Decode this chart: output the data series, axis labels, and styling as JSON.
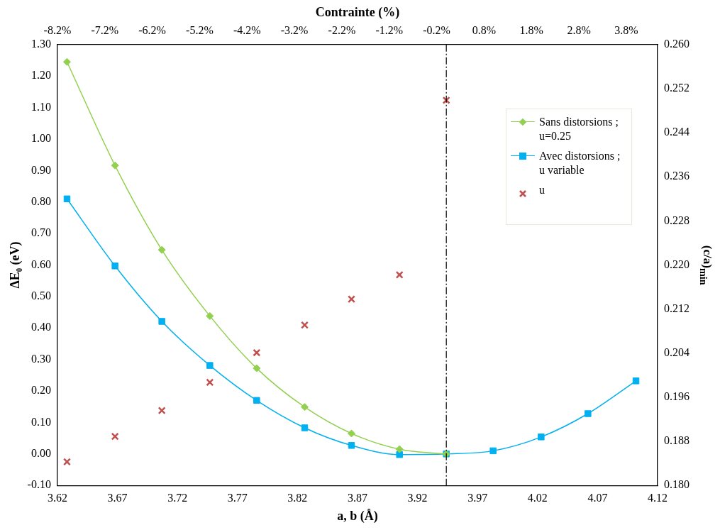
{
  "chart_data": {
    "type": "line",
    "xlabel": "a, b (Å)",
    "ylabel": "ΔE₀ (eV)",
    "y2label": "(c/a)$_{min}$",
    "x2label": "Contrainte (%)",
    "x": [
      3.628,
      3.668,
      3.707,
      3.747,
      3.786,
      3.826,
      3.865,
      3.905,
      3.944,
      3.983,
      4.023,
      4.062,
      4.102
    ],
    "series": [
      {
        "name": "Sans distorsions ; u=0.25",
        "color": "#92d050",
        "marker": "diamond",
        "values": [
          1.245,
          0.916,
          0.648,
          0.438,
          0.272,
          0.149,
          0.065,
          0.015,
          0.0,
          null,
          null,
          null,
          null
        ]
      },
      {
        "name": "Avec distorsions ; u variable",
        "color": "#00b0f0",
        "marker": "square",
        "values": [
          0.81,
          0.597,
          0.421,
          0.281,
          0.17,
          0.083,
          0.027,
          -0.002,
          0.0,
          0.01,
          0.054,
          0.128,
          0.232
        ]
      },
      {
        "name": "u",
        "type": "scatter",
        "axis": "y2",
        "color": "#c0504d",
        "marker": "cross",
        "values": [
          0.1843,
          0.1889,
          0.1936,
          0.1987,
          0.2041,
          0.2091,
          0.2138,
          0.2182,
          0.2499,
          null,
          null,
          null,
          null
        ]
      }
    ],
    "xlim": [
      3.62,
      4.12
    ],
    "xticks": [
      3.62,
      3.67,
      3.72,
      3.77,
      3.82,
      3.87,
      3.92,
      3.97,
      4.02,
      4.07,
      4.12
    ],
    "ylim": [
      -0.1,
      1.3
    ],
    "yticks": [
      {
        "value": -0.1,
        "label": "-0.10"
      },
      {
        "value": 0,
        "label": "0.00"
      },
      {
        "value": 0.1,
        "label": "0.10"
      },
      {
        "value": 0.2,
        "label": "0.20"
      },
      {
        "value": 0.3,
        "label": "0.30"
      },
      {
        "value": 0.4,
        "label": "0.40"
      },
      {
        "value": 0.5,
        "label": "0.50"
      },
      {
        "value": 0.6,
        "label": "0.60"
      },
      {
        "value": 0.7,
        "label": "0.70"
      },
      {
        "value": 0.8,
        "label": "0.80"
      },
      {
        "value": 0.9,
        "label": "0.90"
      },
      {
        "value": 1.0,
        "label": "1.00"
      },
      {
        "value": 1.1,
        "label": "1.10"
      },
      {
        "value": 1.2,
        "label": "1.20"
      },
      {
        "value": 1.3,
        "label": "1.30"
      }
    ],
    "y2lim": [
      0.18,
      0.26
    ],
    "y2ticks": [
      {
        "value": 0.18,
        "label": "0.180"
      },
      0.188,
      0.196,
      0.204,
      0.212,
      {
        "value": 0.22,
        "label": "0.220"
      },
      0.228,
      0.236,
      0.244,
      0.252,
      {
        "value": 0.26,
        "label": "0.260"
      }
    ],
    "x2lim": [
      -8.2,
      4.46
    ],
    "x2ticks": [
      {
        "value": -8.2,
        "label": "-8.2%"
      },
      {
        "value": -7.2,
        "label": "-7.2%"
      },
      {
        "value": -6.2,
        "label": "-6.2%"
      },
      {
        "value": -5.2,
        "label": "-5.2%"
      },
      {
        "value": -4.2,
        "label": "-4.2%"
      },
      {
        "value": -3.2,
        "label": "-3.2%"
      },
      {
        "value": -2.2,
        "label": "-2.2%"
      },
      {
        "value": -1.2,
        "label": "-1.2%"
      },
      {
        "value": -0.2,
        "label": "-0.2%"
      },
      {
        "value": 0.8,
        "label": "0.8%"
      },
      {
        "value": 1.8,
        "label": "1.8%"
      },
      {
        "value": 2.8,
        "label": "2.8%"
      },
      {
        "value": 3.8,
        "label": "3.8%"
      }
    ],
    "ref_lines": [
      {
        "axis": "x",
        "value": 3.944,
        "line_style": "dashdot",
        "color": "#000000"
      }
    ],
    "grid": false,
    "legend": "top right"
  }
}
